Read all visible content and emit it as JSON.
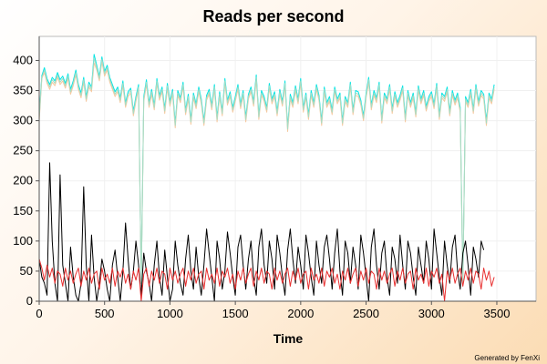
{
  "chart_data": {
    "type": "line",
    "title": "Reads per second",
    "xlabel": "Time",
    "ylabel": "",
    "xlim": [
      0,
      3800
    ],
    "ylim": [
      0,
      440
    ],
    "xticks": [
      0,
      500,
      1000,
      1500,
      2000,
      2500,
      3000,
      3500
    ],
    "yticks": [
      0,
      50,
      100,
      150,
      200,
      250,
      300,
      350,
      400
    ],
    "grid": true,
    "legend": "none",
    "sampling_interval": 20,
    "series": [
      {
        "color": "#00e5e5",
        "values": [
          310,
          375,
          388,
          370,
          360,
          372,
          366,
          380,
          368,
          374,
          362,
          378,
          352,
          366,
          384,
          360,
          346,
          372,
          340,
          364,
          356,
          410,
          392,
          374,
          406,
          382,
          392,
          372,
          360,
          348,
          356,
          338,
          366,
          330,
          348,
          354,
          316,
          340,
          360,
          30,
          340,
          368,
          330,
          352,
          326,
          370,
          342,
          356,
          320,
          362,
          332,
          352,
          296,
          350,
          338,
          364,
          318,
          344,
          302,
          346,
          328,
          356,
          336,
          300,
          342,
          352,
          326,
          360,
          306,
          348,
          316,
          370,
          334,
          348,
          322,
          340,
          360,
          328,
          350,
          306,
          344,
          356,
          332,
          376,
          310,
          350,
          340,
          322,
          362,
          336,
          348,
          316,
          352,
          332,
          366,
          290,
          344,
          330,
          358,
          336,
          370,
          322,
          346,
          310,
          350,
          330,
          360,
          342,
          300,
          356,
          330,
          340,
          318,
          356,
          336,
          346,
          300,
          340,
          330,
          364,
          318,
          350,
          348,
          334,
          308,
          346,
          372,
          326,
          350,
          338,
          364,
          304,
          346,
          336,
          360,
          320,
          348,
          330,
          342,
          358,
          306,
          350,
          330,
          346,
          314,
          358,
          336,
          350,
          324,
          340,
          348,
          328,
          362,
          310,
          346,
          340,
          356,
          316,
          350,
          334,
          346,
          322,
          30,
          340,
          330,
          352,
          320,
          360,
          332,
          350,
          344,
          300,
          346,
          336,
          360
        ]
      },
      {
        "color": "#f5c9a0",
        "values": [
          300,
          370,
          380,
          362,
          352,
          364,
          358,
          372,
          360,
          366,
          354,
          370,
          344,
          358,
          376,
          352,
          338,
          364,
          332,
          356,
          348,
          396,
          384,
          366,
          398,
          374,
          384,
          364,
          352,
          340,
          348,
          330,
          358,
          322,
          340,
          346,
          308,
          332,
          352,
          30,
          332,
          360,
          322,
          344,
          318,
          362,
          334,
          348,
          312,
          354,
          324,
          344,
          288,
          342,
          330,
          356,
          310,
          336,
          294,
          338,
          320,
          348,
          328,
          292,
          334,
          344,
          318,
          352,
          298,
          340,
          308,
          362,
          326,
          340,
          314,
          332,
          352,
          320,
          342,
          298,
          336,
          348,
          324,
          368,
          302,
          342,
          332,
          314,
          354,
          328,
          340,
          308,
          344,
          324,
          358,
          282,
          336,
          322,
          350,
          328,
          362,
          314,
          338,
          302,
          342,
          322,
          352,
          334,
          292,
          348,
          322,
          332,
          310,
          348,
          328,
          338,
          292,
          332,
          322,
          356,
          310,
          342,
          340,
          326,
          300,
          338,
          364,
          318,
          342,
          330,
          356,
          296,
          338,
          328,
          352,
          312,
          340,
          322,
          334,
          350,
          298,
          342,
          322,
          338,
          306,
          350,
          328,
          342,
          316,
          332,
          340,
          320,
          354,
          302,
          338,
          332,
          348,
          308,
          342,
          326,
          338,
          314,
          30,
          332,
          322,
          344,
          312,
          352,
          324,
          342,
          336,
          292,
          338,
          328,
          352
        ]
      },
      {
        "color": "#a8dcc4",
        "values": [
          305,
          372,
          384,
          366,
          356,
          368,
          362,
          376,
          364,
          370,
          358,
          374,
          348,
          362,
          380,
          356,
          342,
          368,
          336,
          360,
          352,
          404,
          388,
          370,
          402,
          378,
          388,
          368,
          356,
          344,
          352,
          334,
          362,
          326,
          344,
          350,
          312,
          336,
          356,
          30,
          336,
          364,
          326,
          348,
          322,
          366,
          338,
          352,
          316,
          358,
          328,
          348,
          292,
          346,
          334,
          360,
          314,
          340,
          298,
          342,
          324,
          352,
          332,
          296,
          338,
          348,
          322,
          356,
          302,
          344,
          312,
          366,
          330,
          344,
          318,
          336,
          356,
          324,
          346,
          302,
          340,
          352,
          328,
          372,
          306,
          346,
          336,
          318,
          358,
          332,
          344,
          312,
          348,
          328,
          362,
          286,
          340,
          326,
          354,
          332,
          366,
          318,
          342,
          306,
          346,
          326,
          356,
          338,
          296,
          352,
          326,
          336,
          314,
          352,
          332,
          342,
          296,
          336,
          326,
          360,
          314,
          346,
          344,
          330,
          304,
          342,
          368,
          322,
          346,
          334,
          360,
          300,
          342,
          332,
          356,
          316,
          344,
          326,
          338,
          354,
          302,
          346,
          326,
          342,
          310,
          354,
          332,
          346,
          320,
          336,
          344,
          324,
          358,
          306,
          342,
          336,
          352,
          312,
          346,
          330,
          342,
          318,
          30,
          336,
          326,
          348,
          316,
          356,
          328,
          346,
          340,
          296,
          342,
          332,
          356
        ]
      },
      {
        "color": "#000000",
        "values": [
          70,
          40,
          30,
          10,
          230,
          100,
          30,
          0,
          210,
          60,
          30,
          0,
          90,
          40,
          10,
          0,
          30,
          190,
          60,
          0,
          110,
          40,
          0,
          30,
          70,
          50,
          20,
          0,
          60,
          85,
          40,
          0,
          50,
          130,
          70,
          20,
          50,
          100,
          60,
          10,
          80,
          50,
          30,
          0,
          60,
          100,
          40,
          10,
          85,
          40,
          0,
          20,
          100,
          60,
          30,
          10,
          70,
          110,
          50,
          20,
          90,
          40,
          10,
          60,
          120,
          80,
          40,
          0,
          100,
          70,
          20,
          50,
          115,
          80,
          40,
          10,
          90,
          110,
          60,
          20,
          70,
          100,
          40,
          10,
          90,
          120,
          60,
          30,
          100,
          70,
          20,
          110,
          80,
          40,
          10,
          85,
          120,
          70,
          30,
          90,
          60,
          20,
          110,
          80,
          40,
          10,
          100,
          60,
          30,
          90,
          110,
          70,
          20,
          80,
          120,
          50,
          10,
          100,
          80,
          30,
          90,
          60,
          20,
          110,
          80,
          40,
          0,
          90,
          120,
          60,
          20,
          80,
          100,
          40,
          10,
          90,
          70,
          30,
          110,
          60,
          20,
          100,
          80,
          40,
          10,
          90,
          60,
          30,
          100,
          70,
          20,
          120,
          80,
          40,
          10,
          100,
          60,
          30,
          90,
          110,
          50,
          20,
          80,
          100,
          60,
          10,
          90,
          70,
          40,
          100,
          85
        ]
      },
      {
        "color": "#e83030",
        "values": [
          70,
          55,
          35,
          60,
          40,
          55,
          30,
          50,
          45,
          25,
          55,
          35,
          50,
          30,
          45,
          55,
          25,
          50,
          35,
          55,
          30,
          45,
          50,
          20,
          55,
          35,
          45,
          30,
          55,
          25,
          50,
          40,
          55,
          30,
          45,
          20,
          50,
          35,
          55,
          0,
          45,
          55,
          25,
          50,
          35,
          55,
          30,
          50,
          45,
          20,
          55,
          35,
          50,
          30,
          45,
          55,
          25,
          50,
          35,
          55,
          30,
          45,
          50,
          20,
          55,
          35,
          45,
          30,
          55,
          25,
          50,
          40,
          55,
          30,
          45,
          20,
          50,
          35,
          55,
          30,
          45,
          55,
          25,
          50,
          35,
          55,
          30,
          50,
          45,
          20,
          55,
          35,
          50,
          30,
          45,
          55,
          25,
          50,
          35,
          55,
          30,
          45,
          50,
          20,
          55,
          35,
          45,
          30,
          55,
          25,
          50,
          40,
          55,
          30,
          45,
          20,
          50,
          35,
          55,
          30,
          45,
          55,
          25,
          50,
          35,
          55,
          30,
          50,
          45,
          20,
          55,
          35,
          50,
          30,
          45,
          55,
          25,
          50,
          35,
          55,
          30,
          45,
          50,
          20,
          55,
          35,
          45,
          30,
          55,
          25,
          50,
          40,
          55,
          30,
          45,
          0,
          50,
          35,
          55,
          30,
          45,
          55,
          25,
          50,
          35,
          55,
          30,
          50,
          45,
          20,
          55,
          35,
          50,
          25,
          40
        ]
      }
    ]
  },
  "footer": {
    "credit": "Generated by FenXi"
  }
}
